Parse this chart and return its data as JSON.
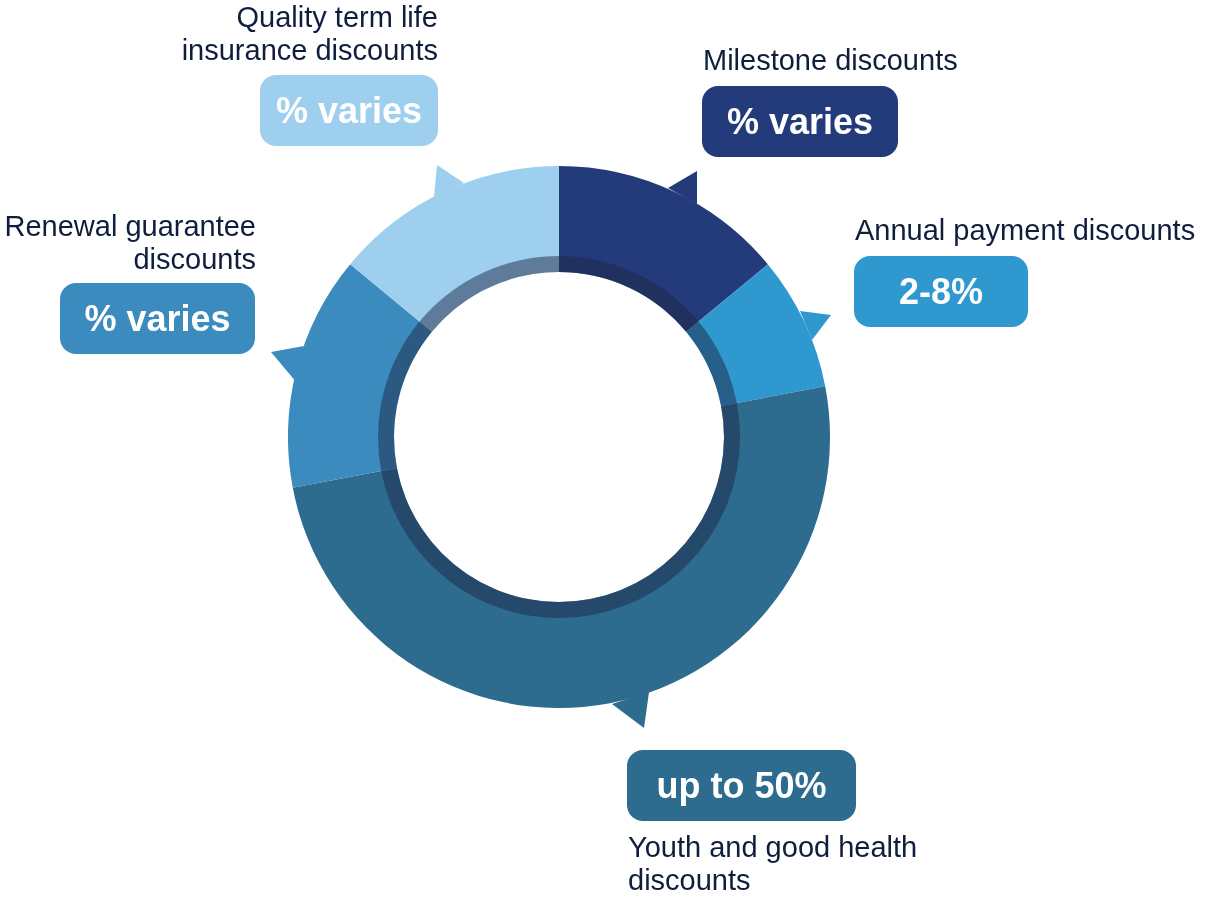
{
  "chart_data": {
    "type": "donut",
    "categories": [
      "Milestone discounts",
      "Annual payment discounts",
      "Youth and good health discounts",
      "Renewal guarantee discounts",
      "Quality term life insurance discounts"
    ],
    "values": [
      14,
      8,
      50,
      14,
      14
    ],
    "colors": [
      "#233b7b",
      "#2f99cf",
      "#2d6b8f",
      "#3b8bbf",
      "#9ecfee"
    ],
    "value_labels": [
      "% varies",
      null,
      "up to 50%",
      "% varies",
      "% varies"
    ],
    "annotations": [
      "2-8%"
    ]
  }
}
